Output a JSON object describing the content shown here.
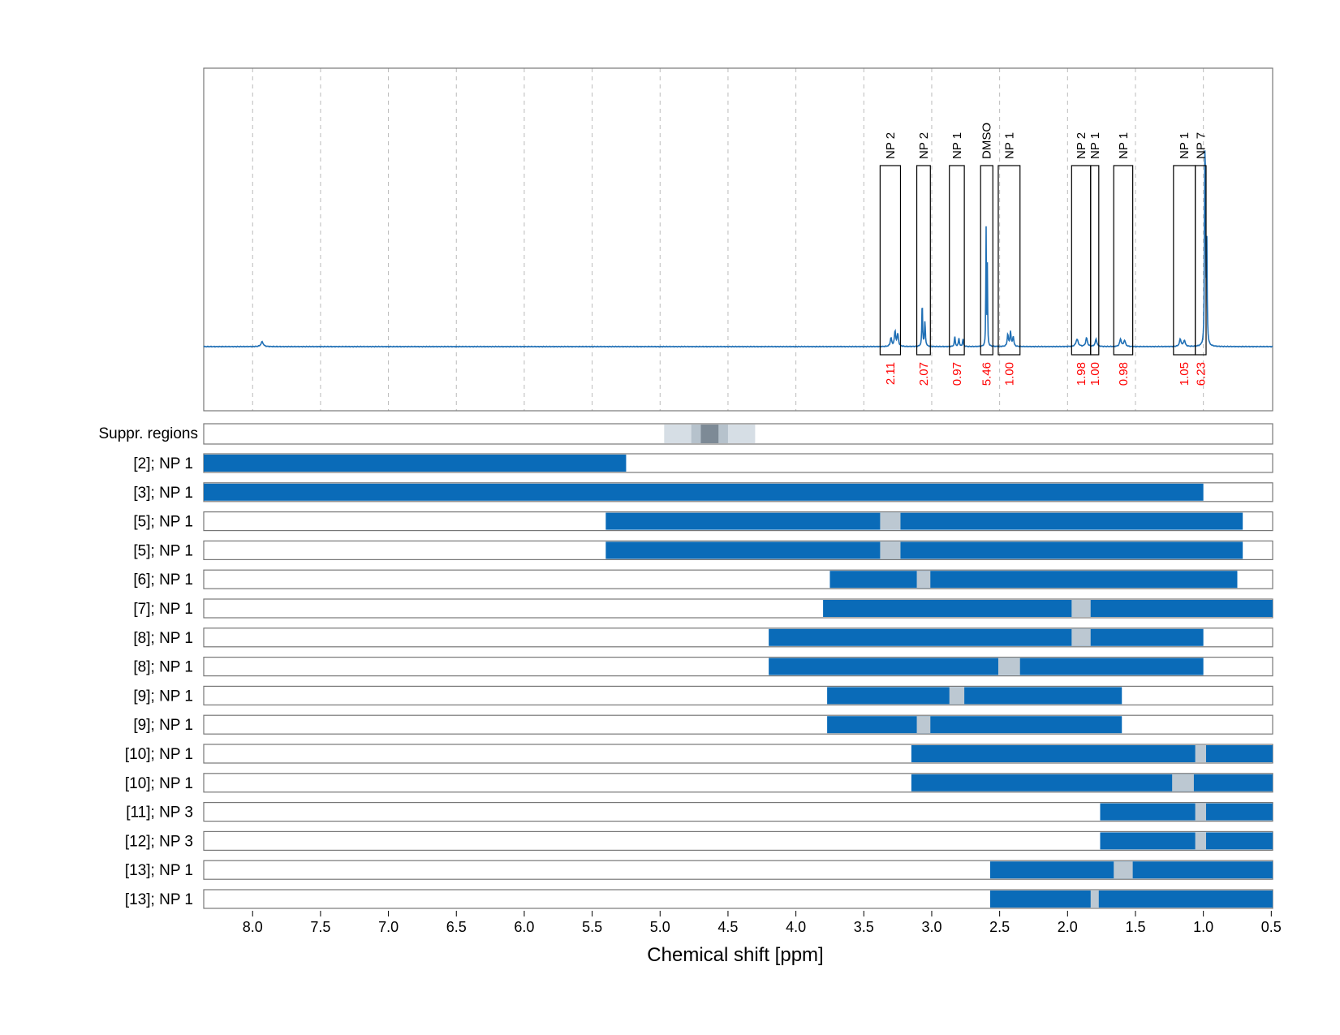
{
  "chart_data": {
    "type": "nmr-spectrum-with-region-bars",
    "xlabel": "Chemical shift [ppm]",
    "xlim": [
      8.36,
      0.49
    ],
    "x_ticks": [
      8.0,
      7.5,
      7.0,
      6.5,
      6.0,
      5.5,
      5.0,
      4.5,
      4.0,
      3.5,
      3.0,
      2.5,
      2.0,
      1.5,
      1.0,
      0.5
    ],
    "x_tick_labels": [
      "8.0",
      "7.5",
      "7.0",
      "6.5",
      "6.0",
      "5.5",
      "5.0",
      "4.5",
      "4.0",
      "3.5",
      "3.0",
      "2.5",
      "2.0",
      "1.5",
      "1.0",
      "0.5"
    ],
    "grid": true,
    "colors": {
      "spectrum": "#1f6fb5",
      "bar": "#0a6bb8",
      "gap": "#bcc8d2",
      "integral_text": "#ff0000",
      "grid": "#bbbbbb"
    },
    "spectrum_peaks": [
      {
        "ppm": 7.93,
        "height": 0.02,
        "width": 0.02
      },
      {
        "ppm": 3.27,
        "height": 0.06,
        "width": 0.012
      },
      {
        "ppm": 3.25,
        "height": 0.05,
        "width": 0.012
      },
      {
        "ppm": 3.3,
        "height": 0.035,
        "width": 0.012
      },
      {
        "ppm": 3.07,
        "height": 0.19,
        "width": 0.006
      },
      {
        "ppm": 3.05,
        "height": 0.1,
        "width": 0.008
      },
      {
        "ppm": 2.83,
        "height": 0.04,
        "width": 0.008
      },
      {
        "ppm": 2.8,
        "height": 0.035,
        "width": 0.008
      },
      {
        "ppm": 2.77,
        "height": 0.03,
        "width": 0.008
      },
      {
        "ppm": 2.6,
        "height": 0.52,
        "width": 0.004
      },
      {
        "ppm": 2.59,
        "height": 0.34,
        "width": 0.004
      },
      {
        "ppm": 2.44,
        "height": 0.05,
        "width": 0.01
      },
      {
        "ppm": 2.42,
        "height": 0.06,
        "width": 0.01
      },
      {
        "ppm": 2.4,
        "height": 0.04,
        "width": 0.01
      },
      {
        "ppm": 1.93,
        "height": 0.03,
        "width": 0.02
      },
      {
        "ppm": 1.86,
        "height": 0.035,
        "width": 0.015
      },
      {
        "ppm": 1.79,
        "height": 0.03,
        "width": 0.015
      },
      {
        "ppm": 1.61,
        "height": 0.03,
        "width": 0.015
      },
      {
        "ppm": 1.58,
        "height": 0.025,
        "width": 0.015
      },
      {
        "ppm": 1.17,
        "height": 0.03,
        "width": 0.015
      },
      {
        "ppm": 1.14,
        "height": 0.025,
        "width": 0.015
      },
      {
        "ppm": 0.99,
        "height": 0.72,
        "width": 0.005
      },
      {
        "ppm": 0.985,
        "height": 0.6,
        "width": 0.005
      },
      {
        "ppm": 0.975,
        "height": 0.45,
        "width": 0.006
      }
    ],
    "annotation_boxes": [
      {
        "label": "NP 2",
        "from": 3.38,
        "to": 3.23,
        "integral": "2.11"
      },
      {
        "label": "NP 2",
        "from": 3.11,
        "to": 3.01,
        "integral": "2.07"
      },
      {
        "label": "NP 1",
        "from": 2.87,
        "to": 2.76,
        "integral": "0.97"
      },
      {
        "label": "DMSO",
        "from": 2.64,
        "to": 2.55,
        "integral": "5.46"
      },
      {
        "label": "NP 1",
        "from": 2.51,
        "to": 2.35,
        "integral": "1.00"
      },
      {
        "label": "NP 2",
        "from": 1.97,
        "to": 1.83,
        "integral": "1.98"
      },
      {
        "label": "NP 1",
        "from": 1.83,
        "to": 1.77,
        "integral": "1.00"
      },
      {
        "label": "NP 1",
        "from": 1.66,
        "to": 1.52,
        "integral": "0.98"
      },
      {
        "label": "NP 1",
        "from": 1.22,
        "to": 1.06,
        "integral": "1.05"
      },
      {
        "label": "NP 7",
        "from": 1.06,
        "to": 0.98,
        "integral": "6.23"
      }
    ],
    "suppression": {
      "label": "Suppr. regions",
      "bands": [
        {
          "from": 4.97,
          "to": 4.3,
          "level": 1
        },
        {
          "from": 4.77,
          "to": 4.5,
          "level": 2
        },
        {
          "from": 4.7,
          "to": 4.57,
          "level": 3
        }
      ]
    },
    "rows": [
      {
        "label": "[2]; NP 1",
        "from": 8.36,
        "to": 5.25,
        "gaps": []
      },
      {
        "label": "[3]; NP 1",
        "from": 8.36,
        "to": 1.0,
        "gaps": []
      },
      {
        "label": "[5]; NP 1",
        "from": 5.4,
        "to": 0.71,
        "gaps": [
          [
            3.38,
            3.23
          ]
        ]
      },
      {
        "label": "[5]; NP 1",
        "from": 5.4,
        "to": 0.71,
        "gaps": [
          [
            3.38,
            3.23
          ]
        ]
      },
      {
        "label": "[6]; NP 1",
        "from": 3.75,
        "to": 0.75,
        "gaps": [
          [
            3.11,
            3.01
          ]
        ]
      },
      {
        "label": "[7]; NP 1",
        "from": 3.8,
        "to": 0.49,
        "gaps": [
          [
            1.97,
            1.83
          ]
        ]
      },
      {
        "label": "[8]; NP 1",
        "from": 4.2,
        "to": 1.0,
        "gaps": [
          [
            1.97,
            1.83
          ]
        ]
      },
      {
        "label": "[8]; NP 1",
        "from": 4.2,
        "to": 1.0,
        "gaps": [
          [
            2.51,
            2.35
          ]
        ]
      },
      {
        "label": "[9]; NP 1",
        "from": 3.77,
        "to": 1.6,
        "gaps": [
          [
            2.87,
            2.76
          ]
        ]
      },
      {
        "label": "[9]; NP 1",
        "from": 3.77,
        "to": 1.6,
        "gaps": [
          [
            3.11,
            3.01
          ]
        ]
      },
      {
        "label": "[10]; NP 1",
        "from": 3.15,
        "to": 0.49,
        "gaps": [
          [
            1.06,
            0.98
          ]
        ]
      },
      {
        "label": "[10]; NP 1",
        "from": 3.15,
        "to": 0.49,
        "gaps": [
          [
            1.23,
            1.07
          ]
        ]
      },
      {
        "label": "[11]; NP 3",
        "from": 1.76,
        "to": 0.49,
        "gaps": [
          [
            1.06,
            0.98
          ]
        ]
      },
      {
        "label": "[12]; NP 3",
        "from": 1.76,
        "to": 0.49,
        "gaps": [
          [
            1.06,
            0.98
          ]
        ]
      },
      {
        "label": "[13]; NP 1",
        "from": 2.57,
        "to": 0.49,
        "gaps": [
          [
            1.66,
            1.52
          ]
        ]
      },
      {
        "label": "[13]; NP 1",
        "from": 2.57,
        "to": 0.49,
        "gaps": [
          [
            1.83,
            1.77
          ]
        ]
      }
    ]
  }
}
